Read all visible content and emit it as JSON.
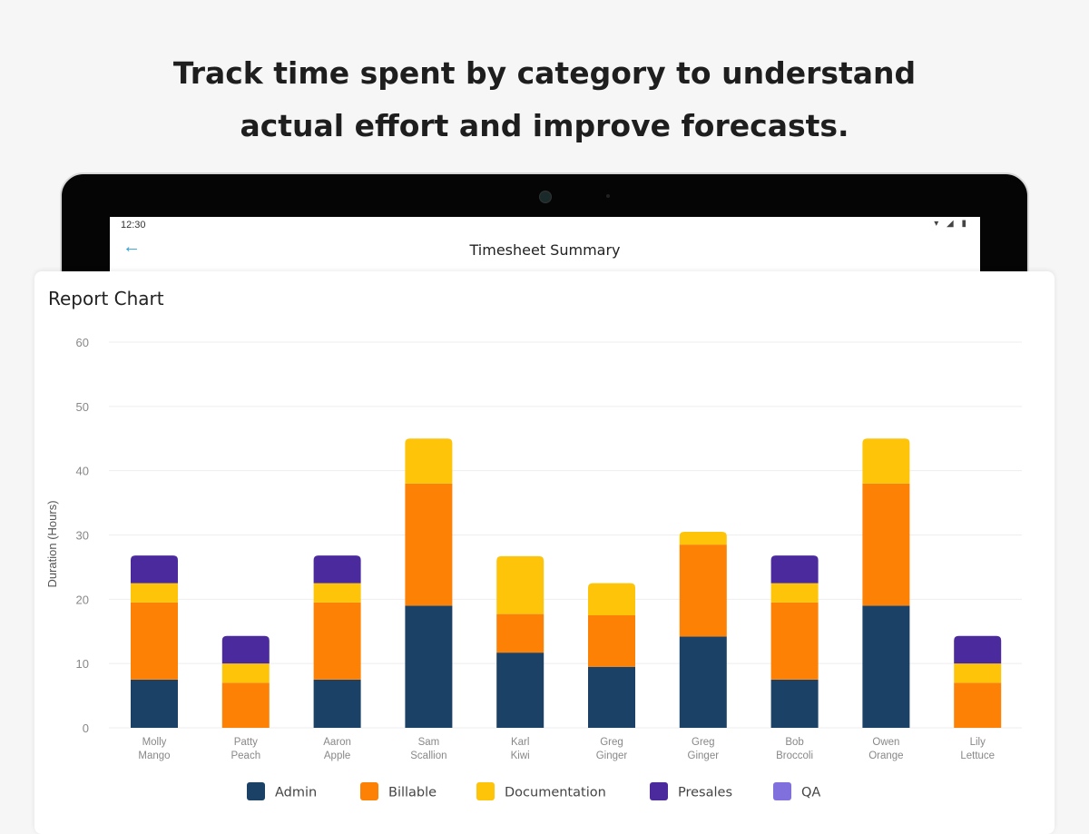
{
  "headline": {
    "line1": "Track time spent by category to understand",
    "line2": "actual effort and improve forecasts."
  },
  "device": {
    "status_time": "12:30",
    "status_icons": "▾ ◢ ▮",
    "back_icon": "arrow-left-icon",
    "app_title": "Timesheet Summary"
  },
  "card": {
    "title": "Report Chart"
  },
  "colors": {
    "Admin": "#1b4266",
    "Billable": "#fc8104",
    "Documentation": "#fec40a",
    "Presales": "#4b2a9e",
    "QA": "#7f70dd"
  },
  "chart_data": {
    "type": "bar",
    "stacked": true,
    "title": "",
    "xlabel": "",
    "ylabel": "Duration (Hours)",
    "ylim": [
      0,
      60
    ],
    "yticks": [
      0,
      10,
      20,
      30,
      40,
      50,
      60
    ],
    "grid": true,
    "legend_position": "bottom",
    "categories": [
      [
        "Molly",
        "Mango"
      ],
      [
        "Patty",
        "Peach"
      ],
      [
        "Aaron",
        "Apple"
      ],
      [
        "Sam",
        "Scallion"
      ],
      [
        "Karl",
        "Kiwi"
      ],
      [
        "Greg",
        "Ginger"
      ],
      [
        "Greg",
        "Ginger"
      ],
      [
        "Bob",
        "Broccoli"
      ],
      [
        "Owen",
        "Orange"
      ],
      [
        "Lily",
        "Lettuce"
      ]
    ],
    "series": [
      {
        "name": "Admin",
        "values": [
          7.5,
          0,
          7.5,
          19,
          11.7,
          9.5,
          14.2,
          7.5,
          19,
          0
        ]
      },
      {
        "name": "Billable",
        "values": [
          12,
          7,
          12,
          19,
          6,
          8,
          14.3,
          12,
          19,
          7
        ]
      },
      {
        "name": "Documentation",
        "values": [
          3,
          3,
          3,
          7,
          9,
          5,
          2,
          3,
          7,
          3
        ]
      },
      {
        "name": "Presales",
        "values": [
          4.3,
          4.3,
          4.3,
          0,
          0,
          0,
          0,
          4.3,
          0,
          4.3
        ]
      },
      {
        "name": "QA",
        "values": [
          0,
          0,
          0,
          0,
          0,
          0,
          0,
          0,
          0,
          0
        ]
      }
    ]
  }
}
